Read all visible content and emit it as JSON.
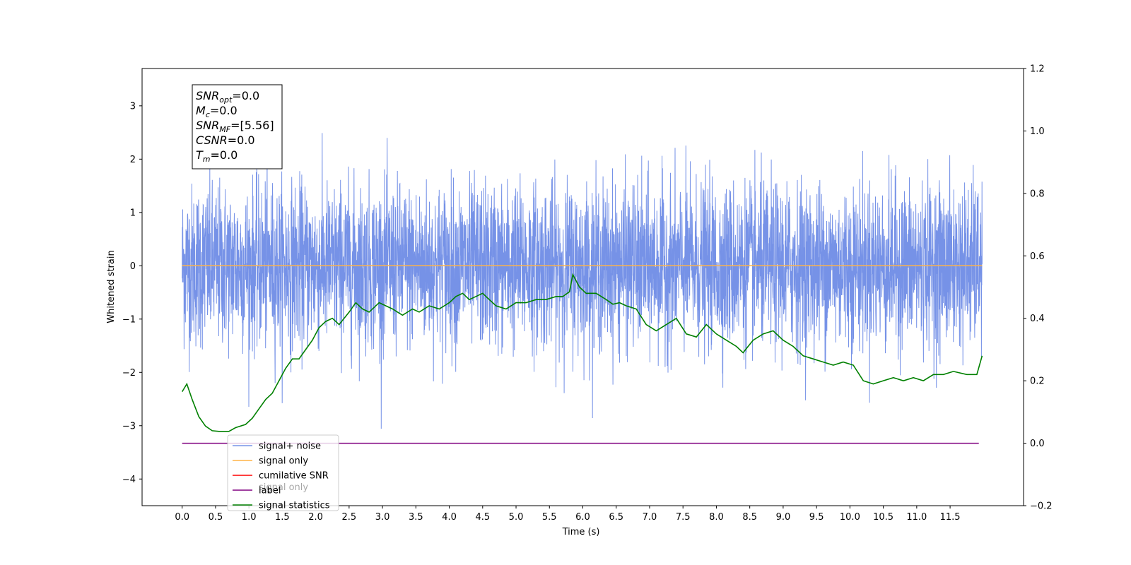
{
  "chart_data": {
    "type": "line",
    "xlabel": "Time (s)",
    "ylabel": "Whitened strain",
    "x_ticks": [
      "0.0",
      "0.5",
      "1.0",
      "1.5",
      "2.0",
      "2.5",
      "3.0",
      "3.5",
      "4.0",
      "4.5",
      "5.0",
      "5.5",
      "6.0",
      "6.5",
      "7.0",
      "7.5",
      "8.0",
      "8.5",
      "9.0",
      "9.5",
      "10.0",
      "10.5",
      "11.0",
      "11.5"
    ],
    "xlim": [
      -0.6,
      12.6
    ],
    "y_left_ticks": [
      "3",
      "2",
      "1",
      "0",
      "−1",
      "−2",
      "−3",
      "−4"
    ],
    "ylim_left": [
      -4.5,
      3.7
    ],
    "y_right_ticks": [
      "1.2",
      "1.0",
      "0.8",
      "0.6",
      "0.4",
      "0.2",
      "0.0",
      "−0.2"
    ],
    "ylim_right": [
      -0.2,
      1.2
    ],
    "info_box": [
      {
        "name": "SNR",
        "sub": "opt",
        "value": "=0.0"
      },
      {
        "name": "M",
        "sub": "c",
        "value": "=0.0"
      },
      {
        "name": "SNR",
        "sub": "MF",
        "value": "=[5.56]"
      },
      {
        "name": "CSNR",
        "sub": "",
        "value": "=0.0"
      },
      {
        "name": "T",
        "sub": "m",
        "value": "=0.0"
      }
    ],
    "legend": [
      "signal+ noise",
      "signal only",
      "cumilative SNR",
      "label",
      "signal statistics"
    ],
    "legend_hidden_text": "signal only",
    "colors": {
      "noise": "#6f8ce6",
      "signal": "#ffb347",
      "cumulative": "#ff0000",
      "label": "#800080",
      "stats": "#008000"
    },
    "series": [
      {
        "name": "signal+ noise",
        "axis": "left",
        "noise_sigma": 0.8,
        "noise_range": [
          -4.1,
          3.35
        ],
        "x_range": [
          0.0,
          11.98
        ]
      },
      {
        "name": "signal only",
        "axis": "left",
        "x": [
          0.0,
          11.98
        ],
        "y": [
          0.0,
          0.0
        ]
      },
      {
        "name": "label",
        "axis": "right",
        "x": [
          0.0,
          11.93
        ],
        "y": [
          0.0,
          0.0
        ]
      },
      {
        "name": "signal statistics",
        "axis": "right",
        "x": [
          0.0,
          0.07,
          0.15,
          0.25,
          0.35,
          0.45,
          0.55,
          0.7,
          0.8,
          0.95,
          1.05,
          1.15,
          1.25,
          1.35,
          1.45,
          1.55,
          1.65,
          1.75,
          1.85,
          1.95,
          2.05,
          2.15,
          2.25,
          2.35,
          2.5,
          2.6,
          2.7,
          2.8,
          2.95,
          3.05,
          3.15,
          3.3,
          3.45,
          3.55,
          3.7,
          3.85,
          4.0,
          4.1,
          4.2,
          4.3,
          4.4,
          4.5,
          4.6,
          4.7,
          4.85,
          5.0,
          5.15,
          5.3,
          5.45,
          5.6,
          5.7,
          5.8,
          5.85,
          5.95,
          6.05,
          6.2,
          6.35,
          6.45,
          6.55,
          6.65,
          6.8,
          6.95,
          7.1,
          7.25,
          7.4,
          7.55,
          7.7,
          7.85,
          8.0,
          8.15,
          8.3,
          8.4,
          8.55,
          8.7,
          8.85,
          9.0,
          9.15,
          9.3,
          9.45,
          9.6,
          9.75,
          9.9,
          10.05,
          10.2,
          10.35,
          10.5,
          10.65,
          10.8,
          10.95,
          11.1,
          11.25,
          11.4,
          11.55,
          11.75,
          11.9,
          11.98
        ],
        "y": [
          0.165,
          0.19,
          0.14,
          0.085,
          0.055,
          0.04,
          0.038,
          0.038,
          0.05,
          0.06,
          0.08,
          0.11,
          0.14,
          0.16,
          0.2,
          0.24,
          0.27,
          0.27,
          0.3,
          0.33,
          0.37,
          0.39,
          0.4,
          0.38,
          0.42,
          0.45,
          0.43,
          0.42,
          0.45,
          0.44,
          0.43,
          0.41,
          0.43,
          0.42,
          0.44,
          0.43,
          0.45,
          0.47,
          0.48,
          0.46,
          0.47,
          0.48,
          0.46,
          0.44,
          0.43,
          0.45,
          0.45,
          0.46,
          0.46,
          0.47,
          0.47,
          0.485,
          0.54,
          0.5,
          0.48,
          0.48,
          0.46,
          0.445,
          0.45,
          0.44,
          0.43,
          0.38,
          0.36,
          0.38,
          0.4,
          0.35,
          0.34,
          0.38,
          0.35,
          0.33,
          0.31,
          0.29,
          0.33,
          0.35,
          0.36,
          0.33,
          0.31,
          0.28,
          0.27,
          0.26,
          0.25,
          0.26,
          0.25,
          0.2,
          0.19,
          0.2,
          0.21,
          0.2,
          0.21,
          0.2,
          0.22,
          0.22,
          0.23,
          0.22,
          0.22,
          0.28
        ]
      }
    ]
  }
}
